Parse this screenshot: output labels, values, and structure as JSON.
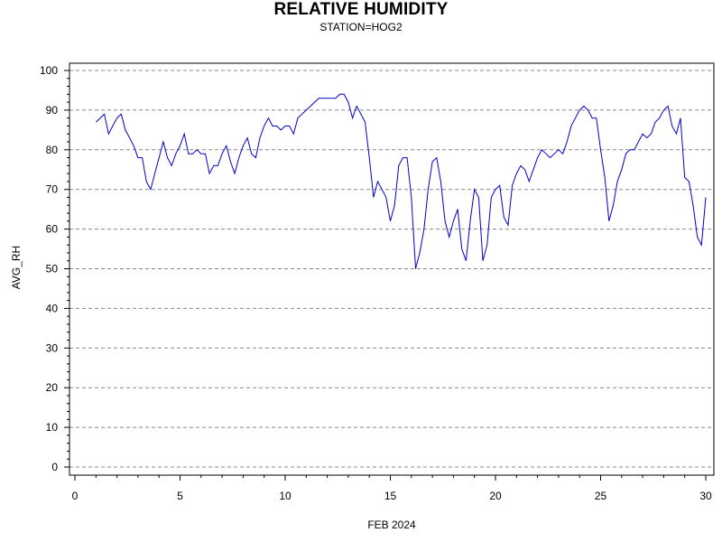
{
  "chart_data": {
    "type": "line",
    "title": "RELATIVE HUMIDITY",
    "subtitle": "STATION=HOG2",
    "xlabel": "FEB 2024",
    "ylabel": "AVG_RH",
    "xlim": [
      0,
      30
    ],
    "ylim": [
      0,
      100
    ],
    "x_ticks": [
      0,
      5,
      10,
      15,
      20,
      25,
      30
    ],
    "y_ticks": [
      0,
      10,
      20,
      30,
      40,
      50,
      60,
      70,
      80,
      90,
      100
    ],
    "grid": "horizontal dashed at each major y tick",
    "line_color": "#0000cc",
    "series": [
      {
        "x": [
          1.0,
          1.2,
          1.4,
          1.6,
          1.8,
          2.0,
          2.2,
          2.4,
          2.6,
          2.8,
          3.0,
          3.2,
          3.4,
          3.6,
          3.8,
          4.0,
          4.2,
          4.4,
          4.6,
          4.8,
          5.0,
          5.2,
          5.4,
          5.6,
          5.8,
          6.0,
          6.2,
          6.4,
          6.6,
          6.8,
          7.0,
          7.2,
          7.4,
          7.6,
          7.8,
          8.0,
          8.2,
          8.4,
          8.6,
          8.8,
          9.0,
          9.2,
          9.4,
          9.6,
          9.8,
          10.0,
          10.2,
          10.4,
          10.6,
          10.8,
          11.0,
          11.2,
          11.4,
          11.6,
          11.8,
          12.0,
          12.2,
          12.4,
          12.6,
          12.8,
          13.0,
          13.2,
          13.4,
          13.6,
          13.8,
          14.0,
          14.2,
          14.4,
          14.6,
          14.8,
          15.0,
          15.2,
          15.4,
          15.6,
          15.8,
          16.0,
          16.2,
          16.4,
          16.6,
          16.8,
          17.0,
          17.2,
          17.4,
          17.6,
          17.8,
          18.0,
          18.2,
          18.4,
          18.6,
          18.8,
          19.0,
          19.2,
          19.4,
          19.6,
          19.8,
          20.0,
          20.2,
          20.4,
          20.6,
          20.8,
          21.0,
          21.2,
          21.4,
          21.6,
          21.8,
          22.0,
          22.2,
          22.4,
          22.6,
          22.8,
          23.0,
          23.2,
          23.4,
          23.6,
          23.8,
          24.0,
          24.2,
          24.4,
          24.6,
          24.8,
          25.0,
          25.2,
          25.4,
          25.6,
          25.8,
          26.0,
          26.2,
          26.4,
          26.6,
          26.8,
          27.0,
          27.2,
          27.4,
          27.6,
          27.8,
          28.0,
          28.2,
          28.4,
          28.6,
          28.8,
          29.0,
          29.2,
          29.4,
          29.6,
          29.8,
          30.0
        ],
        "y": [
          87,
          88,
          89,
          84,
          86,
          88,
          89,
          85,
          83,
          81,
          78,
          78,
          72,
          70,
          74,
          78,
          82,
          78,
          76,
          79,
          81,
          84,
          79,
          79,
          80,
          79,
          79,
          74,
          76,
          76,
          79,
          81,
          77,
          74,
          78,
          81,
          83,
          79,
          78,
          83,
          86,
          88,
          86,
          86,
          85,
          86,
          86,
          84,
          88,
          89,
          90,
          91,
          92,
          93,
          93,
          93,
          93,
          93,
          94,
          94,
          92,
          88,
          91,
          89,
          87,
          78,
          68,
          72,
          70,
          68,
          62,
          66,
          76,
          78,
          78,
          68,
          50,
          54,
          60,
          70,
          77,
          78,
          72,
          62,
          58,
          62,
          65,
          55,
          52,
          62,
          70,
          68,
          52,
          56,
          68,
          70,
          71,
          63,
          61,
          71,
          74,
          76,
          75,
          72,
          75,
          78,
          80,
          79,
          78,
          79,
          80,
          79,
          82,
          86,
          88,
          90,
          91,
          90,
          88,
          88,
          80,
          73,
          62,
          66,
          72,
          75,
          79,
          80,
          80,
          82,
          84,
          83,
          84,
          87,
          88,
          90,
          91,
          86,
          84,
          88,
          73,
          72,
          66,
          58,
          56,
          68
        ]
      }
    ]
  }
}
